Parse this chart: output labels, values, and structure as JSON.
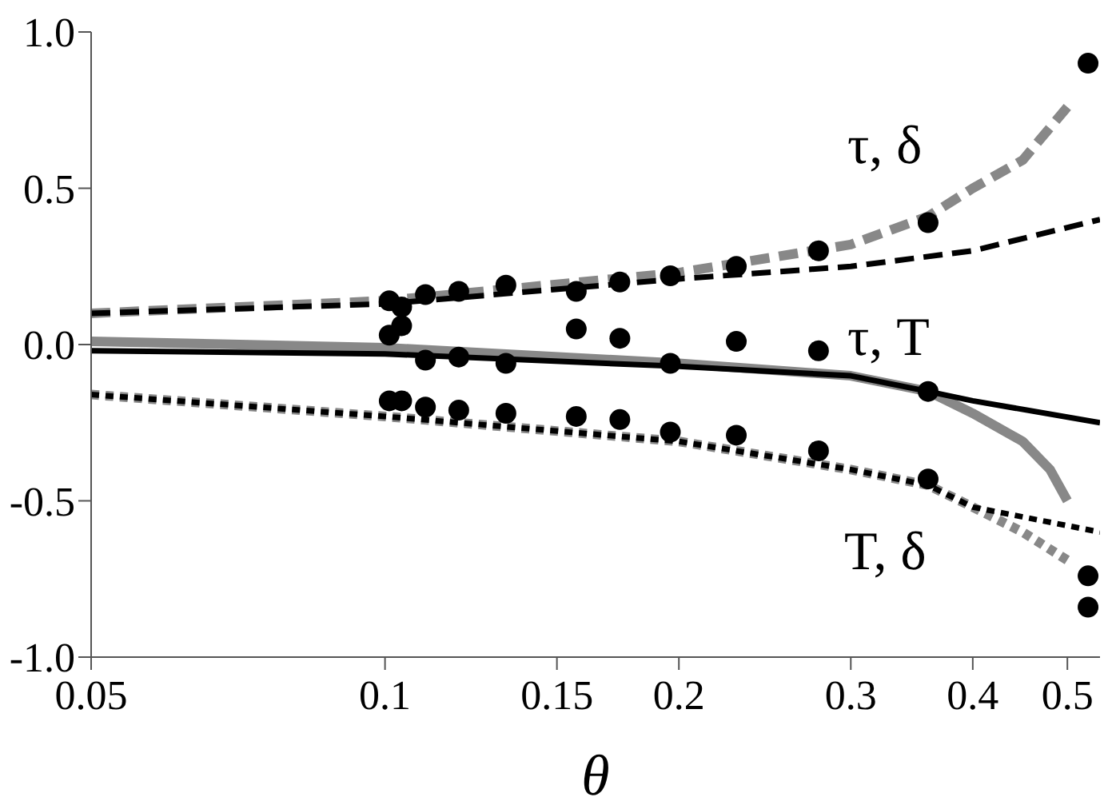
{
  "chart_data": {
    "type": "line",
    "xlabel": "θ",
    "log": "x",
    "xlim": [
      0.05,
      0.54
    ],
    "xticks": [
      0.05,
      0.1,
      0.15,
      0.2,
      0.3,
      0.4,
      0.5
    ],
    "ylim": [
      -1.0,
      1.0
    ],
    "yticks": [
      {
        "value": -1.0,
        "label": "-1.0"
      },
      {
        "value": -0.5,
        "label": "-0.5"
      },
      {
        "value": 0.0,
        "label": "0.0"
      },
      {
        "value": 0.5,
        "label": "0.5"
      },
      {
        "value": 1.0,
        "label": "1.0"
      }
    ],
    "grid": false,
    "legend": false,
    "series": [
      {
        "line_style": "dashed",
        "marker": "none",
        "color": "#888888",
        "x": [
          0.05,
          0.1,
          0.2,
          0.3,
          0.36,
          0.4,
          0.45,
          0.5
        ],
        "values": [
          0.1,
          0.14,
          0.23,
          0.32,
          0.41,
          0.5,
          0.59,
          0.76
        ]
      },
      {
        "line_style": "dashed",
        "marker": "none",
        "color": "#000000",
        "x": [
          0.05,
          0.1,
          0.2,
          0.3,
          0.4,
          0.54
        ],
        "values": [
          0.1,
          0.13,
          0.21,
          0.25,
          0.3,
          0.4
        ]
      },
      {
        "line_style": "solid",
        "marker": "none",
        "color": "#888888",
        "x": [
          0.05,
          0.1,
          0.2,
          0.3,
          0.36,
          0.4,
          0.45,
          0.48,
          0.5
        ],
        "values": [
          0.01,
          -0.01,
          -0.06,
          -0.1,
          -0.15,
          -0.22,
          -0.31,
          -0.4,
          -0.5
        ]
      },
      {
        "line_style": "solid",
        "marker": "none",
        "color": "#000000",
        "x": [
          0.05,
          0.1,
          0.2,
          0.3,
          0.36,
          0.4,
          0.54
        ],
        "values": [
          -0.02,
          -0.03,
          -0.07,
          -0.1,
          -0.15,
          -0.18,
          -0.25
        ]
      },
      {
        "line_style": "dotted",
        "marker": "none",
        "color": "#888888",
        "x": [
          0.05,
          0.1,
          0.2,
          0.3,
          0.36,
          0.4,
          0.45,
          0.5
        ],
        "values": [
          -0.16,
          -0.23,
          -0.31,
          -0.4,
          -0.45,
          -0.52,
          -0.6,
          -0.69
        ]
      },
      {
        "line_style": "dotted",
        "marker": "none",
        "color": "#000000",
        "x": [
          0.05,
          0.1,
          0.2,
          0.3,
          0.36,
          0.4,
          0.54
        ],
        "values": [
          -0.16,
          -0.23,
          -0.31,
          -0.4,
          -0.45,
          -0.52,
          -0.6
        ]
      },
      {
        "type": "scatter",
        "marker": "circle",
        "color": "#000000",
        "x": [
          0.101,
          0.104,
          0.11,
          0.119,
          0.133,
          0.157,
          0.174,
          0.196,
          0.229,
          0.278,
          0.36,
          0.525,
          0.101,
          0.104,
          0.11,
          0.119,
          0.133,
          0.157,
          0.174,
          0.196,
          0.229,
          0.278,
          0.36,
          0.101,
          0.104,
          0.11,
          0.119,
          0.133,
          0.157,
          0.174,
          0.196,
          0.229,
          0.278,
          0.36,
          0.525,
          0.525
        ],
        "values": [
          0.14,
          0.12,
          0.16,
          0.17,
          0.19,
          0.17,
          0.2,
          0.22,
          0.25,
          0.3,
          0.39,
          0.9,
          0.03,
          0.06,
          -0.05,
          -0.04,
          -0.06,
          0.05,
          0.02,
          -0.06,
          0.01,
          -0.02,
          -0.15,
          -0.18,
          -0.18,
          -0.2,
          -0.21,
          -0.22,
          -0.23,
          -0.24,
          -0.28,
          -0.29,
          -0.34,
          -0.43,
          -0.74,
          -0.84
        ]
      }
    ],
    "annotations": [
      "τ, δ",
      "τ, T",
      "T, δ"
    ]
  }
}
